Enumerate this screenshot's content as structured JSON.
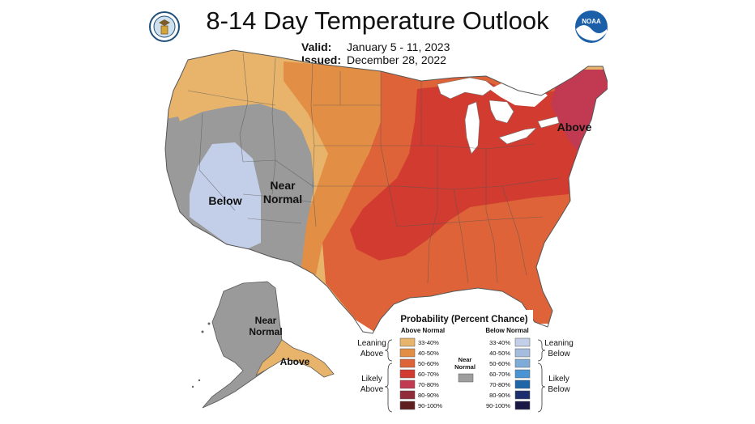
{
  "header": {
    "title": "8-14 Day Temperature Outlook",
    "valid_label": "Valid:",
    "valid_value": "January 5 - 11, 2023",
    "issued_label": "Issued:",
    "issued_value": "December 28, 2022"
  },
  "logos": {
    "left": "doc-seal",
    "right_text": "NOAA"
  },
  "map_labels": {
    "below": "Below",
    "near_normal_line1": "Near",
    "near_normal_line2": "Normal",
    "above": "Above",
    "alaska_near_line1": "Near",
    "alaska_near_line2": "Normal",
    "alaska_above": "Above"
  },
  "legend": {
    "title": "Probability (Percent Chance)",
    "above_header": "Above Normal",
    "below_header": "Below Normal",
    "near_line1": "Near",
    "near_line2": "Normal",
    "leaning_above_1": "Leaning",
    "leaning_above_2": "Above",
    "likely_above_1": "Likely",
    "likely_above_2": "Above",
    "leaning_below_1": "Leaning",
    "leaning_below_2": "Below",
    "likely_below_1": "Likely",
    "likely_below_2": "Below",
    "ranges": [
      "33-40%",
      "40-50%",
      "50-60%",
      "60-70%",
      "70-80%",
      "80-90%",
      "90-100%"
    ],
    "above_colors": [
      "#e8b46b",
      "#e38e45",
      "#de6338",
      "#d13b30",
      "#c13a52",
      "#8f2c37",
      "#5e1e20"
    ],
    "below_colors": [
      "#c3cfe8",
      "#a4bddf",
      "#7fabd8",
      "#4a94d3",
      "#1f66a8",
      "#1d2e6e",
      "#1a1847"
    ],
    "near_color": "#9e9e9e"
  },
  "map_colors": {
    "gray": "#9a9a9a",
    "leaning_below": "#c3cfe8",
    "c33": "#e8b46b",
    "c40": "#e38e45",
    "c50": "#de6338",
    "c60": "#d13b30",
    "c70": "#c13a52",
    "water": "#ffffff",
    "border": "#555555"
  }
}
